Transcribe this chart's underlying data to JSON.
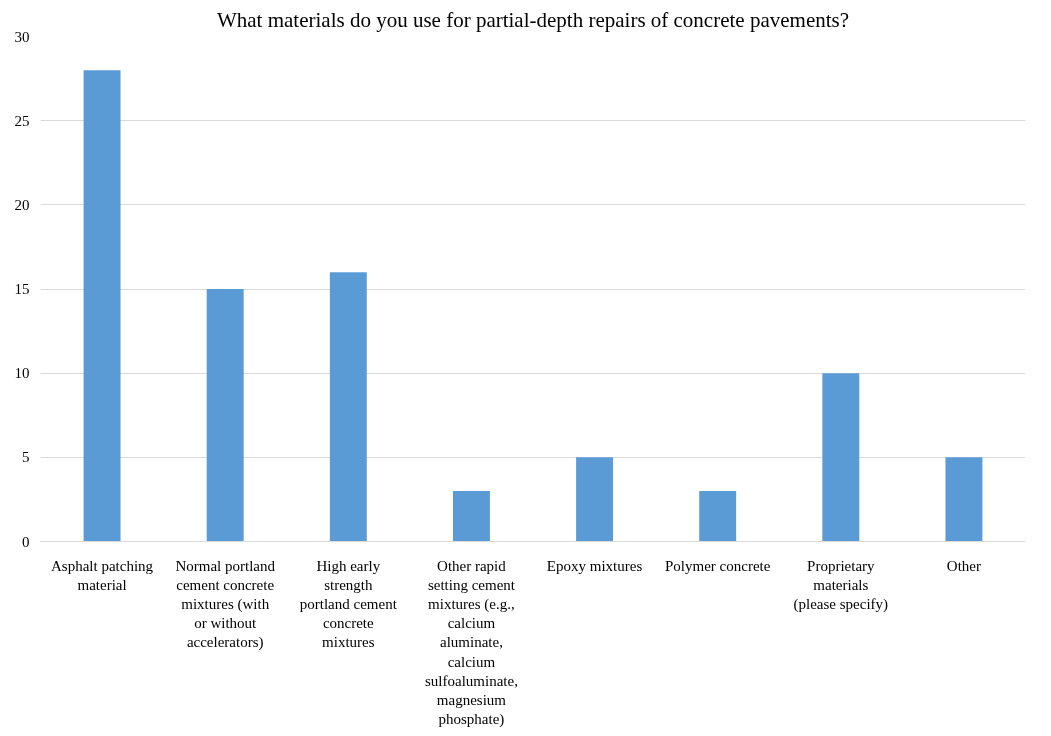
{
  "chart_data": {
    "type": "bar",
    "title": "What materials do you use for partial-depth repairs of concrete pavements?",
    "categories": [
      "Asphalt patching material",
      "Normal portland cement concrete mixtures (with or without accelerators)",
      "High early strength portland cement concrete mixtures",
      "Other rapid setting cement mixtures (e.g., calcium aluminate, calcium sulfoaluminate, magnesium phosphate)",
      "Epoxy mixtures",
      "Polymer concrete",
      "Proprietary materials (please specify)",
      "Other"
    ],
    "values": [
      28,
      15,
      16,
      3,
      5,
      3,
      10,
      5
    ],
    "color": "#5b9bd5",
    "ylim": [
      0,
      30
    ],
    "yticks": [
      0,
      5,
      10,
      15,
      20,
      25,
      30
    ],
    "grid": "y"
  }
}
